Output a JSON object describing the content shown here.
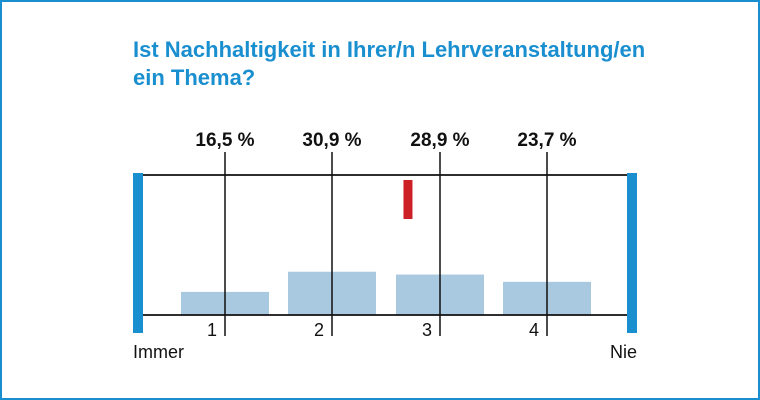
{
  "chart_data": {
    "type": "bar",
    "title_lines": [
      "Ist Nachhaltigkeit in Ihrer/n Lehrveranstaltung/en",
      "ein Thema?"
    ],
    "categories": [
      "1",
      "2",
      "3",
      "4"
    ],
    "values": [
      16.5,
      30.9,
      28.9,
      23.7
    ],
    "value_labels": [
      "16,5 %",
      "30,9 %",
      "28,9 %",
      "23,7 %"
    ],
    "scale_left_label": "Immer",
    "scale_right_label": "Nie",
    "mean_marker": 2.7,
    "ylim": [
      0,
      100
    ],
    "grid": false
  },
  "colors": {
    "frame": "#1a8fd0",
    "title": "#1a8fd0",
    "end_bars": "#1a8fd0",
    "bars": "#a9c9e1",
    "mean_marker": "#cc1f26",
    "lines": "#111111"
  }
}
